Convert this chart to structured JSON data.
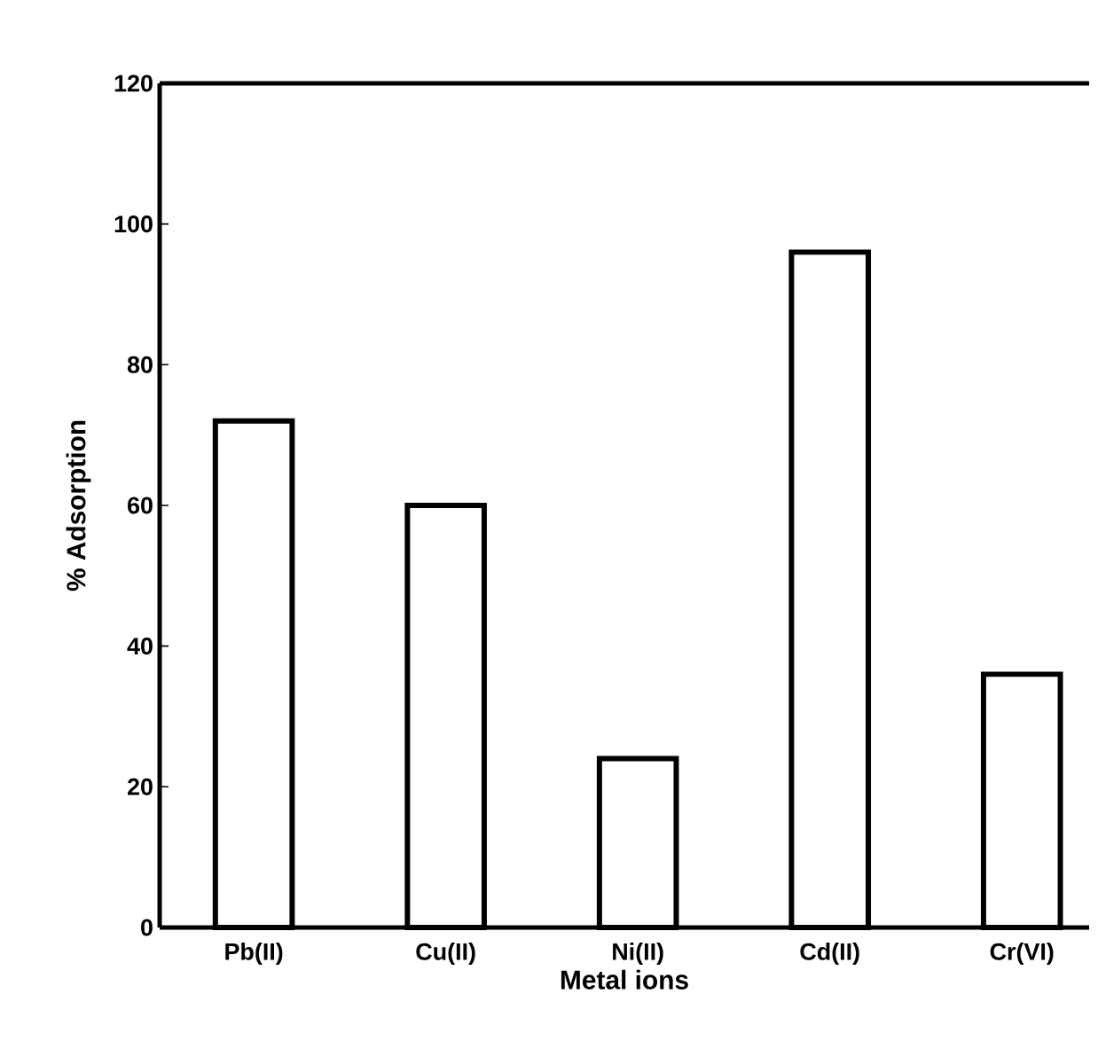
{
  "chart_data": {
    "type": "bar",
    "xlabel": "Metal ions",
    "ylabel": "% Adsorption",
    "categories": [
      "Pb(II)",
      "Cu(II)",
      "Ni(II)",
      "Cd(II)",
      "Cr(VI)"
    ],
    "values": [
      72,
      60,
      24,
      96,
      36
    ],
    "color": "#ffffff",
    "ylim": [
      0,
      120
    ],
    "yticks": [
      0,
      20,
      40,
      60,
      80,
      100,
      120
    ]
  }
}
